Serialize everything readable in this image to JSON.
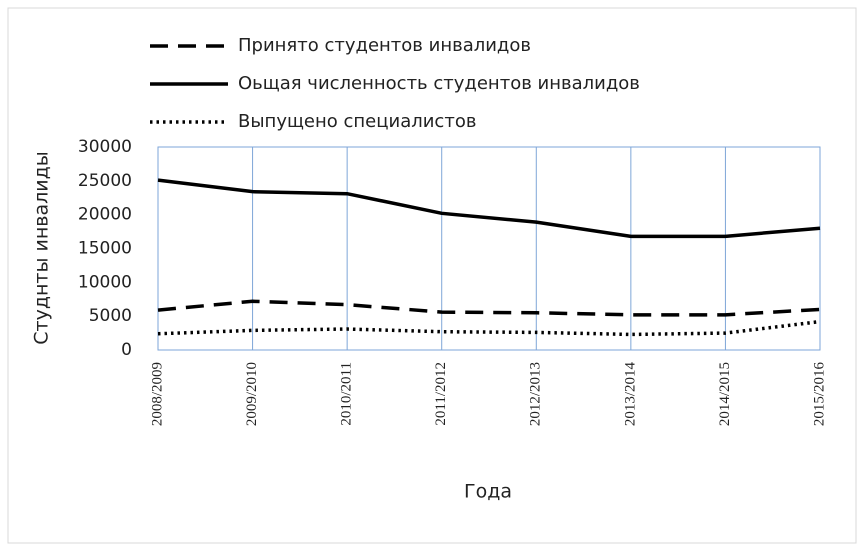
{
  "chart_data": {
    "type": "line",
    "xlabel": "Года",
    "ylabel": "Студнты инвалиды",
    "categories": [
      "2008/2009",
      "2009/2010",
      "2010/2011",
      "2011/2012",
      "2012/2013",
      "2013/2014",
      "2014/2015",
      "2015/2016"
    ],
    "series": [
      {
        "name": "Принято студентов инвалидов",
        "color": "#000000",
        "dash": "dashed",
        "values": [
          5900,
          7200,
          6700,
          5600,
          5500,
          5200,
          5200,
          6000
        ]
      },
      {
        "name": "Оьщая численность студентов инвалидов",
        "color": "#000000",
        "dash": "solid",
        "values": [
          25100,
          23400,
          23100,
          20200,
          18900,
          16800,
          16800,
          18000
        ]
      },
      {
        "name": "Выпущено специалистов",
        "color": "#000000",
        "dash": "dotted",
        "values": [
          2400,
          2900,
          3100,
          2700,
          2600,
          2300,
          2500,
          4200
        ]
      }
    ],
    "ylim": [
      0,
      30000
    ],
    "yticks": [
      0,
      5000,
      10000,
      15000,
      20000,
      25000,
      30000
    ],
    "grid": true,
    "legend": "top"
  }
}
